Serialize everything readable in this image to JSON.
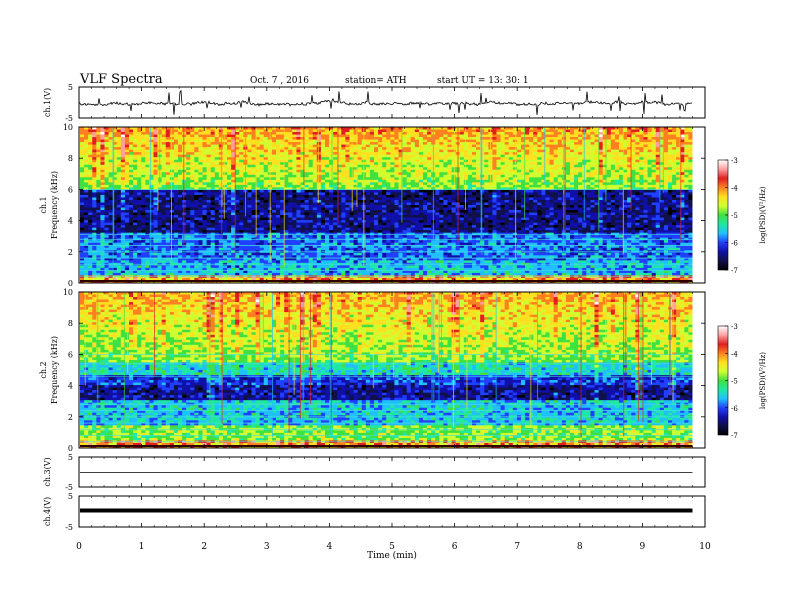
{
  "header": {
    "title": "VLF  Spectra",
    "date": "Oct. 7  , 2016",
    "station": "station= ATH",
    "start": "start  UT  =    13: 30: 1"
  },
  "chart_data": [
    {
      "type": "line",
      "panel": "ch1-waveform",
      "ylabel": "ch.1(V)",
      "ylim": [
        -5,
        5
      ],
      "yticks": [
        "5",
        "-5"
      ],
      "note": "noisy waveform near 0 V with many spikes"
    },
    {
      "type": "heatmap",
      "panel": "ch1-spectrogram",
      "ylabel": "ch.1\nFrequency  (kHz)",
      "ylim": [
        0,
        10
      ],
      "yticks": [
        "0",
        "2",
        "4",
        "6",
        "8",
        "10"
      ],
      "colorbar": {
        "label": "log(PSD)(V²/Hz)",
        "ticks": [
          "-3",
          "-4",
          "-5",
          "-6",
          "-7"
        ],
        "range": [
          -7,
          -3
        ]
      }
    },
    {
      "type": "heatmap",
      "panel": "ch2-spectrogram",
      "ylabel": "ch.2\nFrequency  (kHz)",
      "ylim": [
        0,
        10
      ],
      "yticks": [
        "0",
        "2",
        "4",
        "6",
        "8",
        "10"
      ],
      "colorbar": {
        "label": "log(PSD)(V²/Hz)",
        "ticks": [
          "-3",
          "-4",
          "-5",
          "-6",
          "-7"
        ],
        "range": [
          -7,
          -3
        ]
      }
    },
    {
      "type": "line",
      "panel": "ch3-waveform",
      "ylabel": "ch.3(V)",
      "ylim": [
        -5,
        5
      ],
      "yticks": [
        "5",
        "-5"
      ],
      "note": "flat line near 0 V"
    },
    {
      "type": "line",
      "panel": "ch4-waveform",
      "ylabel": "ch.4(V)",
      "ylim": [
        -5,
        5
      ],
      "yticks": [
        "5",
        "-5"
      ],
      "note": "thick flat line near 0 V"
    }
  ],
  "xaxis": {
    "label": "Time  (min)",
    "xlim": [
      0,
      10
    ],
    "ticks": [
      "0",
      "1",
      "2",
      "3",
      "4",
      "5",
      "6",
      "7",
      "8",
      "9",
      "10"
    ],
    "data_end": 9.8
  },
  "colormap": [
    "#000000",
    "#10104a",
    "#1010a8",
    "#2040ff",
    "#20c0ff",
    "#20e8a0",
    "#40e040",
    "#d0ff30",
    "#ffe020",
    "#ff8020",
    "#e02020",
    "#ffa0a0",
    "#ffffff"
  ]
}
